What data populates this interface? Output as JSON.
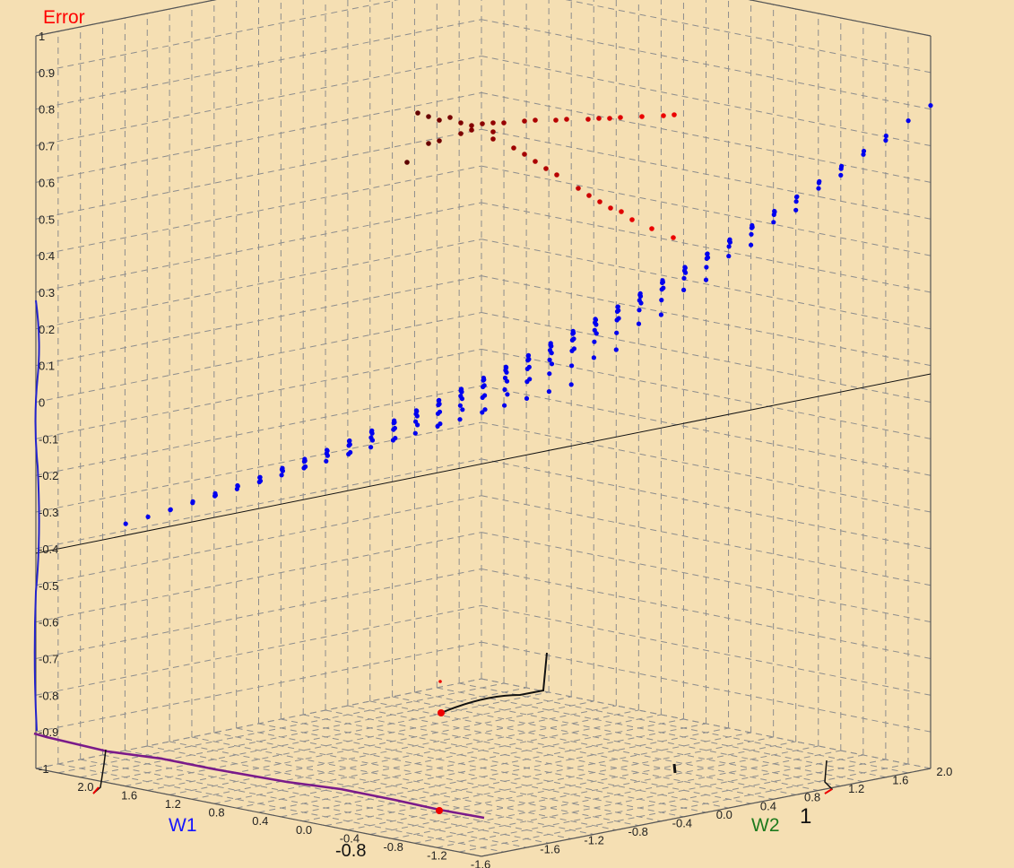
{
  "chart_data": {
    "type": "scatter3d",
    "z_axis": {
      "label": "Error",
      "label_color": "#ff0000",
      "ticks": [
        "1",
        "0.9",
        "0.8",
        "0.7",
        "0.6",
        "0.5",
        "0.4",
        "0.3",
        "0.2",
        "0.1",
        "0",
        "-0.1",
        "-0.2",
        "-0.3",
        "-0.4",
        "-0.5",
        "-0.6",
        "-0.7",
        "-0.8",
        "-0.9",
        "-1"
      ],
      "range": [
        -1,
        1
      ]
    },
    "w1_axis": {
      "label": "W1",
      "label_color": "#1515ff",
      "ticks": [
        "2.0",
        "1.6",
        "1.2",
        "0.8",
        "0.4",
        "0.0",
        "-0.4",
        "-0.8",
        "-1.2",
        "-1.6"
      ],
      "range": [
        2.0,
        -2.0
      ]
    },
    "w2_axis": {
      "label": "W2",
      "label_color": "#1e7a1e",
      "ticks": [
        "-1.6",
        "-1.2",
        "-0.8",
        "-0.4",
        "0.0",
        "0.4",
        "0.8",
        "1.2",
        "1.6",
        "2.0"
      ],
      "range": [
        -2.0,
        2.0
      ]
    },
    "grid": true,
    "series": [
      {
        "color": "#0000ee",
        "description": "error surface sample points over W1 x W2 grid",
        "w1_values": [
          2.0,
          1.8,
          1.6,
          1.4,
          1.2,
          1.0,
          0.8,
          0.6,
          0.4,
          0.2,
          0.0,
          -0.2,
          -0.4,
          -0.6,
          -0.8,
          -1.0,
          -1.2,
          -1.4,
          -1.6,
          -1.8,
          -2.0
        ],
        "w2_values": [
          2.0,
          1.6,
          1.2,
          0.8,
          0.4,
          0.0,
          -0.4,
          -0.8,
          -1.2
        ],
        "error_range": [
          -0.38,
          0.81
        ]
      },
      {
        "color": "#cc0000",
        "description": "gradient descent trajectory points (red to dark red)",
        "approx_error_range": [
          0.5,
          0.82
        ]
      }
    ],
    "annotations": [
      "1",
      "-0.8"
    ]
  }
}
